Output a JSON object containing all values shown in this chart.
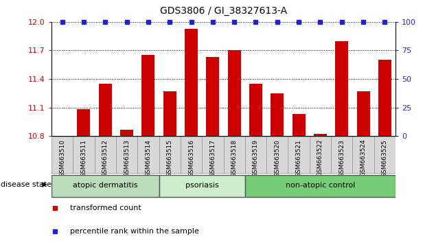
{
  "title": "GDS3806 / GI_38327613-A",
  "samples": [
    "GSM663510",
    "GSM663511",
    "GSM663512",
    "GSM663513",
    "GSM663514",
    "GSM663515",
    "GSM663516",
    "GSM663517",
    "GSM663518",
    "GSM663519",
    "GSM663520",
    "GSM663521",
    "GSM663522",
    "GSM663523",
    "GSM663524",
    "GSM663525"
  ],
  "bar_values": [
    10.8,
    11.08,
    11.35,
    10.87,
    11.65,
    11.27,
    11.93,
    11.63,
    11.7,
    11.35,
    11.25,
    11.03,
    10.82,
    11.8,
    11.27,
    11.6
  ],
  "percentile_values": [
    100,
    100,
    100,
    100,
    100,
    100,
    100,
    100,
    100,
    100,
    100,
    100,
    100,
    100,
    100,
    100
  ],
  "ylim_left": [
    10.8,
    12.0
  ],
  "ylim_right": [
    0,
    100
  ],
  "yticks_left": [
    10.8,
    11.1,
    11.4,
    11.7,
    12.0
  ],
  "yticks_right": [
    0,
    25,
    50,
    75,
    100
  ],
  "bar_color": "#cc0000",
  "dot_color": "#2222cc",
  "groups": [
    {
      "label": "atopic dermatitis",
      "start": 0,
      "end": 5,
      "color": "#bbddbb"
    },
    {
      "label": "psoriasis",
      "start": 5,
      "end": 9,
      "color": "#cceecc"
    },
    {
      "label": "non-atopic control",
      "start": 9,
      "end": 16,
      "color": "#77cc77"
    }
  ],
  "disease_state_label": "disease state",
  "legend_items": [
    {
      "color": "#cc0000",
      "label": "transformed count",
      "marker": "s"
    },
    {
      "color": "#2222cc",
      "label": "percentile rank within the sample",
      "marker": "s"
    }
  ],
  "left_axis_color": "#cc0000",
  "right_axis_color": "#2222cc",
  "sample_cell_color": "#d8d8d8",
  "sample_cell_edge": "#999999"
}
